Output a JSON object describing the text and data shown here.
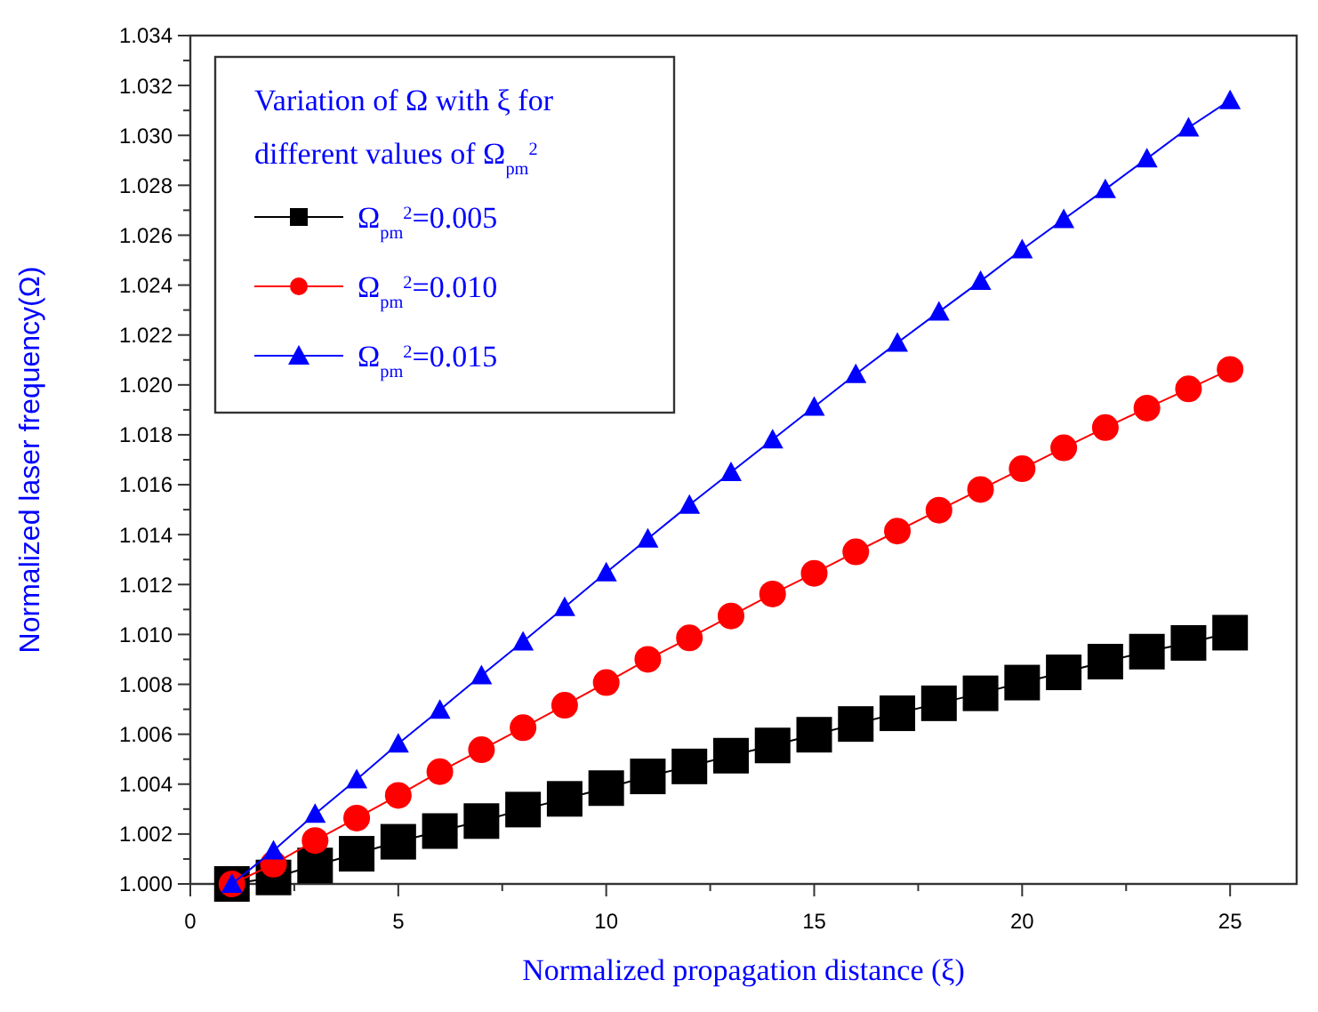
{
  "chart_data": {
    "type": "line",
    "xlabel": "Normalized propagation distance (ξ)",
    "ylabel": "Normalized laser frequency(Ω)",
    "legend_title": "Variation of Ω with ξ for different values of Ω$_{pm}$$^{2}$",
    "legend": "top left",
    "marker": "circle",
    "line_style": "solid",
    "grid": false,
    "x": [
      1,
      2,
      3,
      4,
      5,
      6,
      7,
      8,
      9,
      10,
      11,
      12,
      13,
      14,
      15,
      16,
      17,
      18,
      19,
      20,
      21,
      22,
      23,
      24,
      25
    ],
    "xlim": [
      0,
      26.6
    ],
    "xticks": [
      0,
      {
        "value": 2.5,
        "label": null
      },
      5,
      {
        "value": 7.5,
        "label": null
      },
      10,
      {
        "value": 12.5,
        "label": null
      },
      15,
      {
        "value": 17.5,
        "label": null
      },
      20,
      {
        "value": 22.5,
        "label": null
      },
      25
    ],
    "ylim": [
      1.0,
      1.034
    ],
    "yticks": [
      {
        "value": 1.0,
        "label": "1.000"
      },
      {
        "value": 1.001,
        "label": null
      },
      {
        "value": 1.002,
        "label": "1.002"
      },
      {
        "value": 1.003,
        "label": null
      },
      {
        "value": 1.004,
        "label": "1.004"
      },
      {
        "value": 1.005,
        "label": null
      },
      {
        "value": 1.006,
        "label": "1.006"
      },
      {
        "value": 1.007,
        "label": null
      },
      {
        "value": 1.008,
        "label": "1.008"
      },
      {
        "value": 1.009,
        "label": null
      },
      {
        "value": 1.01,
        "label": "1.010"
      },
      {
        "value": 1.011,
        "label": null
      },
      {
        "value": 1.012,
        "label": "1.012"
      },
      {
        "value": 1.013,
        "label": null
      },
      {
        "value": 1.014,
        "label": "1.014"
      },
      {
        "value": 1.015,
        "label": null
      },
      {
        "value": 1.016,
        "label": "1.016"
      },
      {
        "value": 1.017,
        "label": null
      },
      {
        "value": 1.018,
        "label": "1.018"
      },
      {
        "value": 1.019,
        "label": null
      },
      {
        "value": 1.02,
        "label": "1.020"
      },
      {
        "value": 1.021,
        "label": null
      },
      {
        "value": 1.022,
        "label": "1.022"
      },
      {
        "value": 1.023,
        "label": null
      },
      {
        "value": 1.024,
        "label": "1.024"
      },
      {
        "value": 1.025,
        "label": null
      },
      {
        "value": 1.026,
        "label": "1.026"
      },
      {
        "value": 1.027,
        "label": null
      },
      {
        "value": 1.028,
        "label": "1.028"
      },
      {
        "value": 1.029,
        "label": null
      },
      {
        "value": 1.03,
        "label": "1.030"
      },
      {
        "value": 1.031,
        "label": null
      },
      {
        "value": 1.032,
        "label": "1.032"
      },
      {
        "value": 1.033,
        "label": null
      },
      {
        "value": 1.034,
        "label": "1.034"
      }
    ],
    "series": [
      {
        "name": "Ω$_{pm}$$^{2}$=0.005",
        "color": "#000000",
        "marker": "square",
        "values": [
          1.0,
          1.00026,
          1.00074,
          1.00121,
          1.00169,
          1.00212,
          1.00252,
          1.00298,
          1.00341,
          1.00384,
          1.00431,
          1.00471,
          1.00514,
          1.00555,
          1.00598,
          1.00641,
          1.00684,
          1.00724,
          1.00764,
          1.00807,
          1.00848,
          1.00891,
          1.00931,
          1.00966,
          1.01007
        ]
      },
      {
        "name": "Ω$_{pm}$$^{2}$=0.010",
        "color": "#ff0000",
        "marker": "circle",
        "values": [
          1.0,
          1.00079,
          1.00174,
          1.00264,
          1.00355,
          1.0045,
          1.00538,
          1.00626,
          1.00716,
          1.00807,
          1.009,
          1.00986,
          1.01074,
          1.01162,
          1.01245,
          1.01331,
          1.01414,
          1.01498,
          1.01581,
          1.01664,
          1.01748,
          1.01829,
          1.01907,
          1.01984,
          1.02062
        ]
      },
      {
        "name": "Ω$_{pm}$$^{2}$=0.015",
        "color": "#0000ff",
        "marker": "triangle",
        "values": [
          1.0,
          1.00134,
          1.00281,
          1.00419,
          1.00562,
          1.00698,
          1.00836,
          1.00971,
          1.01109,
          1.01248,
          1.01384,
          1.01519,
          1.0165,
          1.01781,
          1.01912,
          1.02043,
          1.02169,
          1.02293,
          1.02416,
          1.02543,
          1.02664,
          1.02784,
          1.02907,
          1.03031,
          1.03141
        ]
      }
    ]
  }
}
